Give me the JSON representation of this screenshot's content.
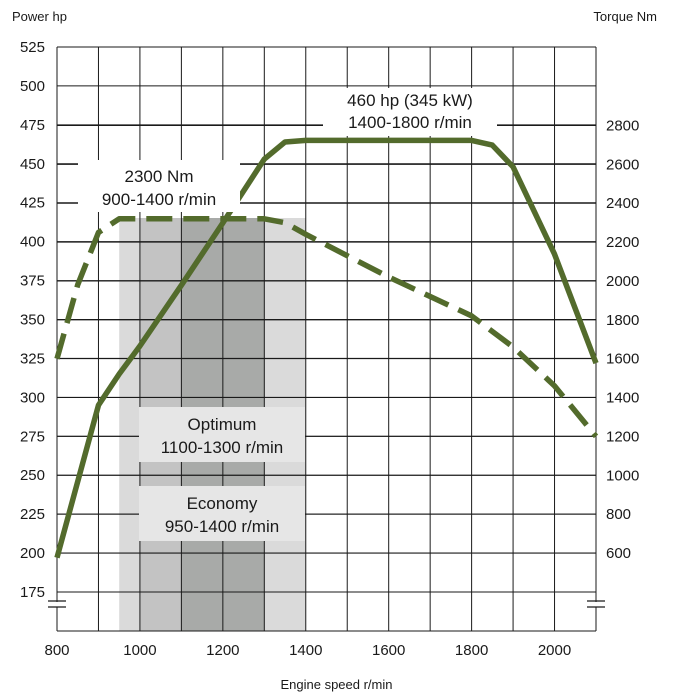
{
  "chart_data": {
    "type": "line",
    "left_axis_title": "Power hp",
    "right_axis_title": "Torque Nm",
    "xlabel": "Engine speed r/min",
    "xlim": [
      800,
      2100
    ],
    "x_ticks": [
      800,
      1000,
      1200,
      1400,
      1600,
      1800,
      2000
    ],
    "y_left_lim": [
      175,
      525
    ],
    "y_left_ticks": [
      175,
      200,
      225,
      250,
      275,
      300,
      325,
      350,
      375,
      400,
      425,
      450,
      475,
      500,
      525
    ],
    "y_right_ticks": [
      600,
      800,
      1000,
      1200,
      1400,
      1600,
      1800,
      2000,
      2200,
      2400,
      2600,
      2800
    ],
    "axis_break_marks": true,
    "grid": true,
    "line_color": "#536b2c",
    "series": [
      {
        "axis": "left",
        "style": "solid",
        "x": [
          800,
          900,
          950,
          1000,
          1100,
          1200,
          1300,
          1350,
          1400,
          1500,
          1600,
          1700,
          1800,
          1850,
          1900,
          2000,
          2100
        ],
        "y": [
          197,
          295,
          315,
          333,
          372,
          412,
          453,
          464,
          465,
          465,
          465,
          465,
          465,
          462,
          448,
          392,
          322
        ]
      },
      {
        "axis": "right",
        "style": "dashed",
        "x": [
          800,
          850,
          900,
          950,
          1000,
          1100,
          1200,
          1300,
          1350,
          1400,
          1500,
          1600,
          1700,
          1800,
          1900,
          2000,
          2100
        ],
        "y": [
          1600,
          1980,
          2250,
          2320,
          2320,
          2320,
          2320,
          2320,
          2300,
          2240,
          2130,
          2020,
          1920,
          1820,
          1660,
          1460,
          1200
        ]
      }
    ],
    "shaded_bands": [
      {
        "x": [
          950,
          1400
        ],
        "color": "#dadada"
      },
      {
        "x": [
          1000,
          1300
        ],
        "color": "#c3c3c3"
      },
      {
        "x": [
          1100,
          1300
        ],
        "color": "#a8aaa8"
      }
    ],
    "annotations": {
      "power": [
        "460 hp (345 kW)",
        "1400-1800 r/min"
      ],
      "torque": [
        "2300 Nm",
        "900-1400 r/min"
      ],
      "optimum": [
        "Optimum",
        "1100-1300 r/min"
      ],
      "economy": [
        "Economy",
        "950-1400 r/min"
      ]
    }
  }
}
